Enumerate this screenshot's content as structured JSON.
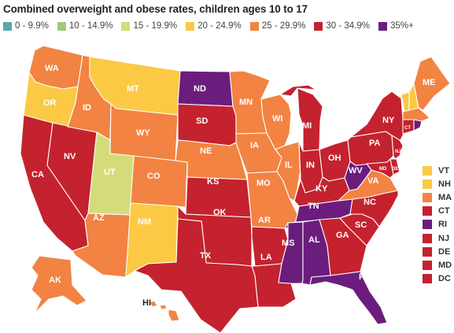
{
  "title": "Combined overweight and obese rates, children ages 10 to 17",
  "legend": [
    {
      "label": "0 - 9.9%",
      "color": "#5ea6a6"
    },
    {
      "label": "10 - 14.9%",
      "color": "#9ec97e"
    },
    {
      "label": "15 - 19.9%",
      "color": "#d4dc7a"
    },
    {
      "label": "20 - 24.9%",
      "color": "#fbc943"
    },
    {
      "label": "25 - 29.9%",
      "color": "#f28342"
    },
    {
      "label": "30 - 34.9%",
      "color": "#c4222e"
    },
    {
      "label": "35%+",
      "color": "#6b1d7e"
    }
  ],
  "colors": {
    "c20": "#fbc943",
    "c15": "#d4dc7a",
    "c25": "#f28342",
    "c30": "#c4222e",
    "c35": "#6b1d7e",
    "border": "#ffffff"
  },
  "states": [
    {
      "abbr": "WA",
      "bin": "25 - 29.9%"
    },
    {
      "abbr": "OR",
      "bin": "20 - 24.9%"
    },
    {
      "abbr": "CA",
      "bin": "30 - 34.9%"
    },
    {
      "abbr": "NV",
      "bin": "30 - 34.9%"
    },
    {
      "abbr": "ID",
      "bin": "25 - 29.9%"
    },
    {
      "abbr": "MT",
      "bin": "20 - 24.9%"
    },
    {
      "abbr": "WY",
      "bin": "25 - 29.9%"
    },
    {
      "abbr": "UT",
      "bin": "15 - 19.9%"
    },
    {
      "abbr": "CO",
      "bin": "25 - 29.9%"
    },
    {
      "abbr": "AZ",
      "bin": "25 - 29.9%"
    },
    {
      "abbr": "NM",
      "bin": "20 - 24.9%"
    },
    {
      "abbr": "ND",
      "bin": "35%+"
    },
    {
      "abbr": "SD",
      "bin": "30 - 34.9%"
    },
    {
      "abbr": "NE",
      "bin": "25 - 29.9%"
    },
    {
      "abbr": "KS",
      "bin": "30 - 34.9%"
    },
    {
      "abbr": "OK",
      "bin": "30 - 34.9%"
    },
    {
      "abbr": "TX",
      "bin": "30 - 34.9%"
    },
    {
      "abbr": "MN",
      "bin": "25 - 29.9%"
    },
    {
      "abbr": "IA",
      "bin": "25 - 29.9%"
    },
    {
      "abbr": "MO",
      "bin": "25 - 29.9%"
    },
    {
      "abbr": "AR",
      "bin": "30 - 34.9%"
    },
    {
      "abbr": "LA",
      "bin": "30 - 34.9%"
    },
    {
      "abbr": "WI",
      "bin": "25 - 29.9%"
    },
    {
      "abbr": "IL",
      "bin": "25 - 29.9%"
    },
    {
      "abbr": "MI",
      "bin": "30 - 34.9%"
    },
    {
      "abbr": "IN",
      "bin": "30 - 34.9%"
    },
    {
      "abbr": "OH",
      "bin": "30 - 34.9%"
    },
    {
      "abbr": "KY",
      "bin": "30 - 34.9%"
    },
    {
      "abbr": "TN",
      "bin": "35%+"
    },
    {
      "abbr": "MS",
      "bin": "35%+"
    },
    {
      "abbr": "AL",
      "bin": "35%+"
    },
    {
      "abbr": "GA",
      "bin": "30 - 34.9%"
    },
    {
      "abbr": "FL",
      "bin": "35%+"
    },
    {
      "abbr": "SC",
      "bin": "30 - 34.9%"
    },
    {
      "abbr": "NC",
      "bin": "30 - 34.9%"
    },
    {
      "abbr": "VA",
      "bin": "25 - 29.9%"
    },
    {
      "abbr": "WV",
      "bin": "35%+"
    },
    {
      "abbr": "PA",
      "bin": "30 - 34.9%"
    },
    {
      "abbr": "NY",
      "bin": "30 - 34.9%"
    },
    {
      "abbr": "ME",
      "bin": "25 - 29.9%"
    },
    {
      "abbr": "AK",
      "bin": "25 - 29.9%"
    },
    {
      "abbr": "HI",
      "bin": "25 - 29.9%"
    }
  ],
  "small_states": [
    {
      "abbr": "VT",
      "color": "#fbc943"
    },
    {
      "abbr": "NH",
      "color": "#fbc943"
    },
    {
      "abbr": "MA",
      "color": "#f28342"
    },
    {
      "abbr": "CT",
      "color": "#c4222e"
    },
    {
      "abbr": "RI",
      "color": "#6b1d7e"
    },
    {
      "abbr": "NJ",
      "color": "#c4222e"
    },
    {
      "abbr": "DE",
      "color": "#c4222e"
    },
    {
      "abbr": "MD",
      "color": "#c4222e"
    },
    {
      "abbr": "DC",
      "color": "#c4222e"
    }
  ],
  "map_labels": {
    "CT": "CT",
    "NJ": "NJ",
    "DE": "DE",
    "MD": "MD"
  }
}
